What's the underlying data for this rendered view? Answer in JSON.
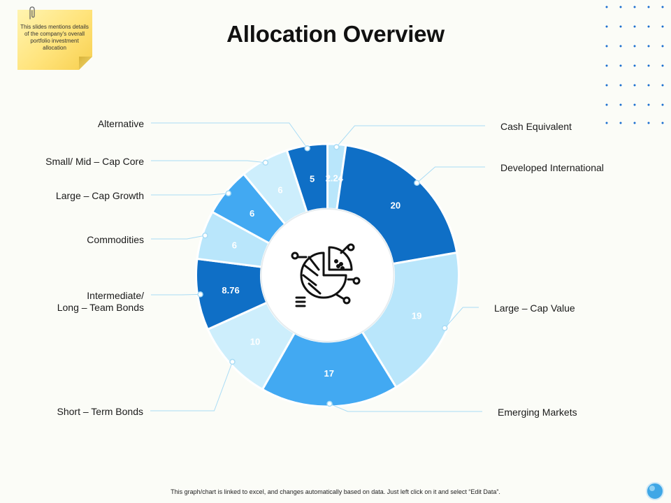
{
  "page": {
    "title": "Allocation Overview",
    "sticky_note": "This slides mentions details of the company's overall portfolio investment allocation",
    "footer": "This graph/chart is linked to excel, and changes automatically based on data. Just left click on it and select “Edit Data”."
  },
  "icons": {
    "center": "pie-chart-network-icon",
    "clip": "paperclip-icon",
    "help": "help-bubble-icon"
  },
  "chart_data": {
    "type": "pie",
    "variant": "donut",
    "title": "Allocation Overview",
    "categories": [
      "Cash Equivalent",
      "Developed International",
      "Large – Cap Value",
      "Emerging Markets",
      "Short – Term Bonds",
      "Intermediate/ Long – Team Bonds",
      "Commodities",
      "Large – Cap Growth",
      "Small/ Mid – Cap Core",
      "Alternative"
    ],
    "values": [
      2.24,
      20,
      19,
      17,
      10,
      8.76,
      6,
      6,
      6,
      5
    ],
    "labels": [
      "2.24",
      "20",
      "19",
      "17",
      "10",
      "8.76",
      "6",
      "6",
      "6",
      "5"
    ],
    "colors": [
      "#b9e6fb",
      "#0f6fc6",
      "#b9e6fb",
      "#42a9f2",
      "#cdeefc",
      "#0f6fc6",
      "#b9e6fb",
      "#42a9f2",
      "#cdeefc",
      "#0f6fc6"
    ],
    "value_label_colors": [
      "#ffffff",
      "#ffffff",
      "#ffffff",
      "#ffffff",
      "#ffffff",
      "#ffffff",
      "#ffffff",
      "#ffffff",
      "#ffffff",
      "#ffffff"
    ],
    "legend": "none"
  }
}
